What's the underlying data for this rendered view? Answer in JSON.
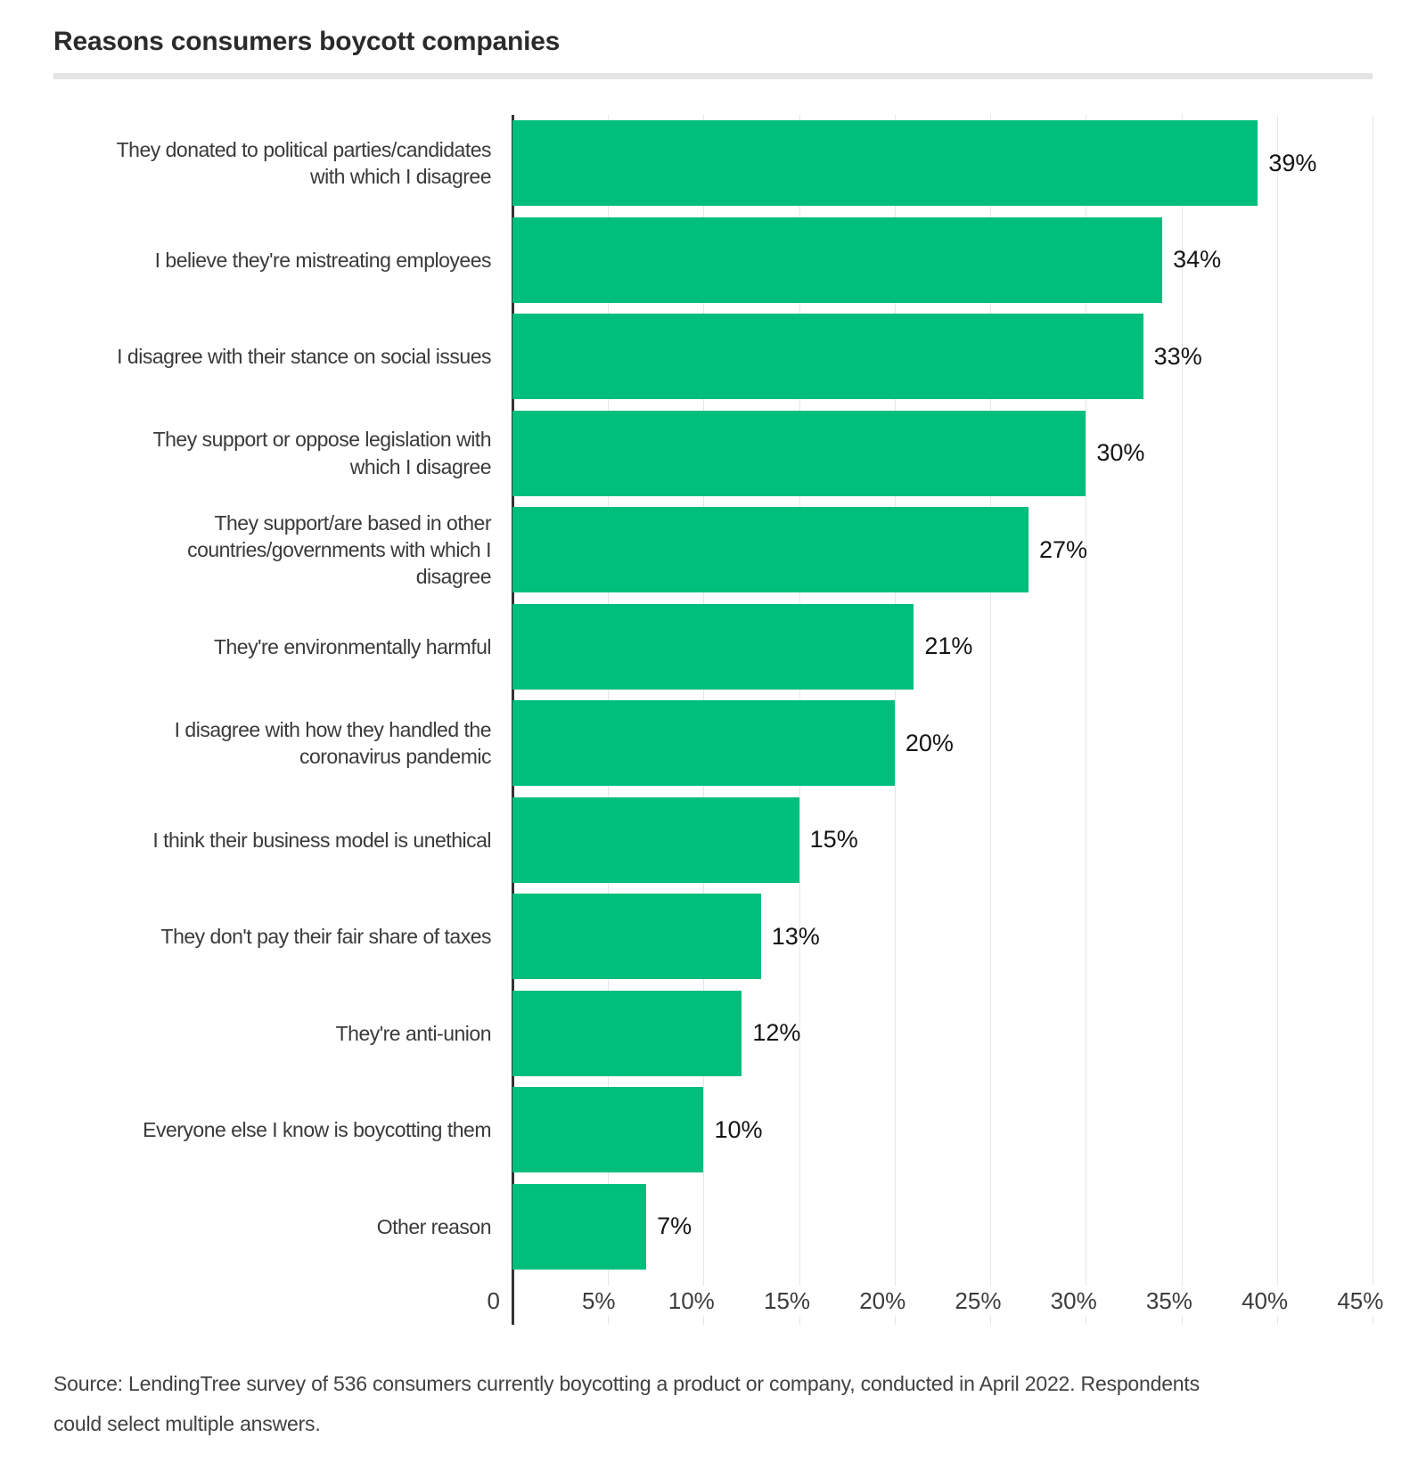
{
  "title": "Reasons consumers boycott companies",
  "source_note": "Source: LendingTree survey of 536 consumers currently boycotting a product or company, conducted in April 2022. Respondents\ncould select multiple answers.",
  "colors": {
    "bar": "#00be7c",
    "axis": "#333333",
    "grid": "#e6e6e6",
    "title_text": "#2b2b2b",
    "divider": "#e4e4e4"
  },
  "chart_data": {
    "type": "bar",
    "orientation": "horizontal",
    "title": "Reasons consumers boycott companies",
    "categories": [
      "They donated to political parties/candidates\nwith which I disagree",
      "I believe they're mistreating employees",
      "I disagree with their stance on social issues",
      "They support or oppose legislation with\nwhich I disagree",
      "They support/are based in other\ncountries/governments with which I\ndisagree",
      "They're environmentally harmful",
      "I disagree with how they handled the\ncoronavirus pandemic",
      "I think their business model is unethical",
      "They don't pay their fair share of taxes",
      "They're anti-union",
      "Everyone else I know is boycotting them",
      "Other reason"
    ],
    "values": [
      39,
      34,
      33,
      30,
      27,
      21,
      20,
      15,
      13,
      12,
      10,
      7
    ],
    "value_labels": [
      "39%",
      "34%",
      "33%",
      "30%",
      "27%",
      "21%",
      "20%",
      "15%",
      "13%",
      "12%",
      "10%",
      "7%"
    ],
    "xlabel": "",
    "ylabel": "",
    "xlim": [
      0,
      45
    ],
    "x_tick_zero": "0",
    "x_ticks": [
      "5%",
      "10%",
      "15%",
      "20%",
      "25%",
      "30%",
      "35%",
      "40%",
      "45%"
    ],
    "grid": "vertical",
    "legend": "none"
  }
}
